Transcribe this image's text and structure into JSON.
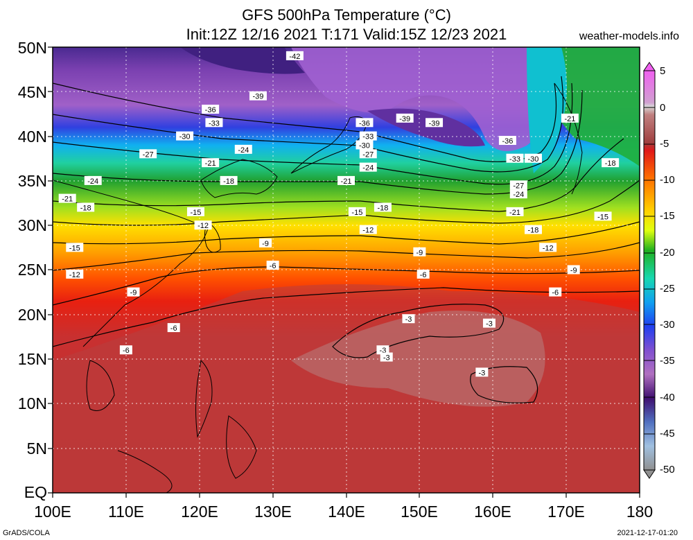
{
  "title_line1": "GFS 500hPa Temperature (°C)",
  "title_line2": "Init:12Z 12/16 2021 T:171 Valid:15Z 12/23 2021",
  "site": "weather-models.info",
  "footer_left": "GrADS/COLA",
  "footer_right": "2021-12-17-01:20",
  "lat_labels": [
    "50N",
    "45N",
    "40N",
    "35N",
    "30N",
    "25N",
    "20N",
    "15N",
    "10N",
    "5N",
    "EQ"
  ],
  "lon_labels": [
    "100E",
    "110E",
    "120E",
    "130E",
    "140E",
    "150E",
    "160E",
    "170E",
    "180"
  ],
  "colorbar_labels": [
    "5",
    "0",
    "-5",
    "-10",
    "-15",
    "-20",
    "-25",
    "-30",
    "-35",
    "-40",
    "-45",
    "-50"
  ],
  "colorbar_colors": [
    "#e88ce8",
    "#d8d8d8",
    "#b06060",
    "#e01818",
    "#ff8000",
    "#ffd000",
    "#e0ff10",
    "#20b020",
    "#18d8b0",
    "#10a0f0",
    "#2040f0",
    "#6030c0",
    "#9040b0",
    "#303090",
    "#80a0e0",
    "#909090"
  ],
  "contour_labels": [
    {
      "t": "-42",
      "lon": 133,
      "lat": 49
    },
    {
      "t": "-39",
      "lon": 128,
      "lat": 44.5
    },
    {
      "t": "-36",
      "lon": 121.5,
      "lat": 43
    },
    {
      "t": "-33",
      "lon": 122,
      "lat": 41.5
    },
    {
      "t": "-30",
      "lon": 118,
      "lat": 40
    },
    {
      "t": "-27",
      "lon": 113,
      "lat": 38
    },
    {
      "t": "-24",
      "lon": 105.5,
      "lat": 35
    },
    {
      "t": "-21",
      "lon": 102,
      "lat": 33
    },
    {
      "t": "-18",
      "lon": 104.5,
      "lat": 32
    },
    {
      "t": "-15",
      "lon": 103,
      "lat": 27.5
    },
    {
      "t": "-12",
      "lon": 103,
      "lat": 24.5
    },
    {
      "t": "-24",
      "lon": 126,
      "lat": 38.5
    },
    {
      "t": "-21",
      "lon": 121.5,
      "lat": 37
    },
    {
      "t": "-18",
      "lon": 124,
      "lat": 35
    },
    {
      "t": "-15",
      "lon": 119.5,
      "lat": 31.5
    },
    {
      "t": "-12",
      "lon": 120.5,
      "lat": 30
    },
    {
      "t": "-9",
      "lon": 129,
      "lat": 28
    },
    {
      "t": "-9",
      "lon": 111,
      "lat": 22.5
    },
    {
      "t": "-6",
      "lon": 130,
      "lat": 25.5
    },
    {
      "t": "-6",
      "lon": 116.5,
      "lat": 18.5
    },
    {
      "t": "-6",
      "lon": 110,
      "lat": 16
    },
    {
      "t": "-36",
      "lon": 142.5,
      "lat": 41.5
    },
    {
      "t": "-33",
      "lon": 143,
      "lat": 40
    },
    {
      "t": "-30",
      "lon": 142.5,
      "lat": 39
    },
    {
      "t": "-27",
      "lon": 143,
      "lat": 38
    },
    {
      "t": "-24",
      "lon": 143,
      "lat": 36.5
    },
    {
      "t": "-21",
      "lon": 140,
      "lat": 35
    },
    {
      "t": "-39",
      "lon": 148,
      "lat": 42
    },
    {
      "t": "-39",
      "lon": 152,
      "lat": 41.5
    },
    {
      "t": "-36",
      "lon": 162,
      "lat": 39.5
    },
    {
      "t": "-33",
      "lon": 163,
      "lat": 37.5
    },
    {
      "t": "-30",
      "lon": 165.5,
      "lat": 37.5
    },
    {
      "t": "-27",
      "lon": 163.5,
      "lat": 34.5
    },
    {
      "t": "-24",
      "lon": 163.5,
      "lat": 33.5
    },
    {
      "t": "-21",
      "lon": 163,
      "lat": 31.5
    },
    {
      "t": "-18",
      "lon": 165.5,
      "lat": 29.5
    },
    {
      "t": "-15",
      "lon": 141.5,
      "lat": 31.5
    },
    {
      "t": "-18",
      "lon": 145,
      "lat": 32
    },
    {
      "t": "-12",
      "lon": 143,
      "lat": 29.5
    },
    {
      "t": "-12",
      "lon": 167.5,
      "lat": 27.5
    },
    {
      "t": "-9",
      "lon": 150,
      "lat": 27
    },
    {
      "t": "-6",
      "lon": 150.5,
      "lat": 24.5
    },
    {
      "t": "-9",
      "lon": 171,
      "lat": 25
    },
    {
      "t": "-6",
      "lon": 168.5,
      "lat": 22.5
    },
    {
      "t": "-21",
      "lon": 170.5,
      "lat": 42
    },
    {
      "t": "-18",
      "lon": 176,
      "lat": 37
    },
    {
      "t": "-15",
      "lon": 175,
      "lat": 31
    },
    {
      "t": "-3",
      "lon": 148.5,
      "lat": 19.5
    },
    {
      "t": "-3",
      "lon": 159.5,
      "lat": 19
    },
    {
      "t": "-3",
      "lon": 145,
      "lat": 16
    },
    {
      "t": "-3",
      "lon": 145.5,
      "lat": 15.2
    },
    {
      "t": "-3",
      "lon": 158.5,
      "lat": 13.5
    }
  ]
}
